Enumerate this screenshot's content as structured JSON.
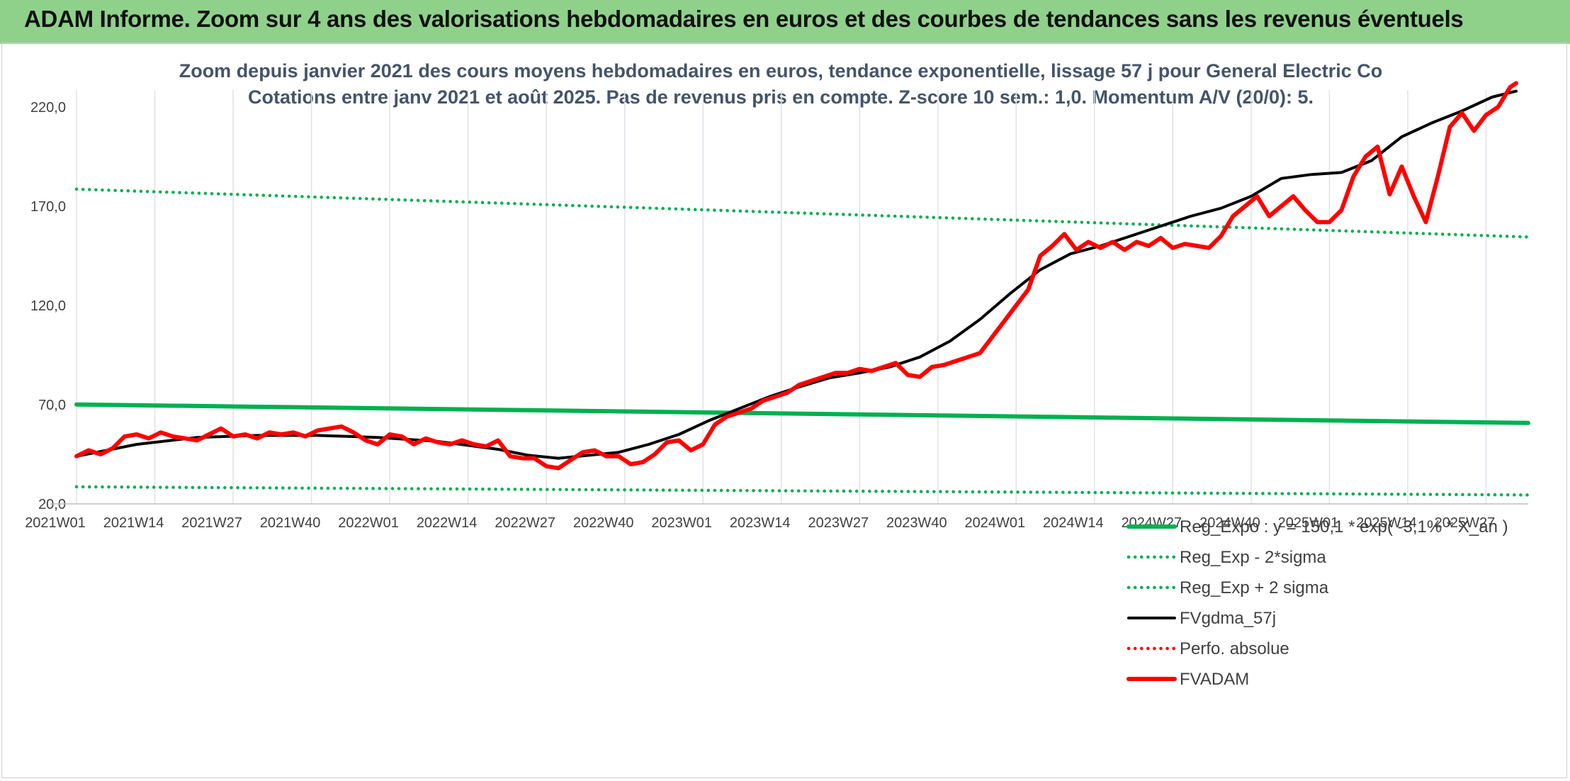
{
  "banner": {
    "title": "ADAM Informe. Zoom sur 4 ans des valorisations hebdomadaires en euros et des courbes de tendances sans les revenus éventuels"
  },
  "colors": {
    "green": "#00b050",
    "red": "#ff0000",
    "black": "#000000",
    "title_text": "#44546a",
    "banner_bg": "#8fd18b"
  },
  "chart_data": {
    "type": "line",
    "title": "Zoom depuis janvier 2021 des cours moyens hebdomadaires en euros, tendance exponentielle, lissage 57 j pour General Electric Co",
    "subtitle": "Cotations entre janv 2021 et août 2025. Pas de revenus pris en compte. Z-score 10 sem.: 1,0. Momentum A/V (20/0): 5.",
    "xlabel": "",
    "ylabel": "",
    "ylim": [
      20,
      220
    ],
    "y_ticks": [
      "20,0",
      "70,0",
      "120,0",
      "170,0",
      "220,0"
    ],
    "x_range": [
      0,
      241
    ],
    "x_ticks": [
      "2021W01",
      "2021W14",
      "2021W27",
      "2021W40",
      "2022W01",
      "2022W14",
      "2022W27",
      "2022W40",
      "2023W01",
      "2023W14",
      "2023W27",
      "2023W40",
      "2024W01",
      "2024W14",
      "2024W27",
      "2024W40",
      "2025W01",
      "2025W14",
      "2025W27"
    ],
    "grid": "vertical",
    "legend_position": "bottom-right",
    "series": [
      {
        "name": "Reg_Expo : y = 150,1 * exp( -3,1% *  X_an )",
        "style": "solid-thick",
        "color": "#00b050",
        "x": [
          0,
          241
        ],
        "y": [
          70.1,
          60.8
        ]
      },
      {
        "name": "Reg_Exp - 2*sigma",
        "style": "dotted",
        "color": "#00b050",
        "x": [
          0,
          241
        ],
        "y": [
          28.6,
          24.5
        ]
      },
      {
        "name": "Reg_Exp + 2 sigma",
        "style": "dotted",
        "color": "#00b050",
        "x": [
          0,
          241
        ],
        "y": [
          178.6,
          154.5
        ]
      },
      {
        "name": "FVgdma_57j",
        "style": "solid",
        "color": "#000000",
        "x": [
          0,
          10,
          20,
          30,
          40,
          50,
          60,
          70,
          75,
          80,
          90,
          95,
          100,
          105,
          110,
          115,
          120,
          125,
          130,
          135,
          140,
          145,
          150,
          155,
          160,
          165,
          170,
          175,
          180,
          185,
          190,
          195,
          200,
          205,
          210,
          215,
          220,
          225,
          230,
          235,
          239
        ],
        "y": [
          44,
          50,
          53.5,
          54.5,
          54.5,
          53.5,
          51.5,
          47.5,
          44.5,
          43,
          46,
          50,
          55,
          62,
          68,
          74,
          79,
          83.5,
          86,
          89,
          94,
          102,
          113,
          126,
          138,
          146,
          150,
          155,
          160,
          165,
          169,
          175,
          184,
          186,
          187,
          193,
          205,
          212,
          218,
          225,
          228
        ]
      },
      {
        "name": "Perfo. absolue",
        "style": "dotted",
        "color": "#ff0000",
        "x": [],
        "y": []
      },
      {
        "name": "FVADAM",
        "style": "solid-thick",
        "color": "#ff0000",
        "x": [
          0,
          2,
          4,
          6,
          8,
          10,
          12,
          14,
          16,
          18,
          20,
          22,
          24,
          26,
          28,
          30,
          32,
          34,
          36,
          38,
          40,
          42,
          44,
          46,
          48,
          50,
          52,
          54,
          56,
          58,
          60,
          62,
          64,
          66,
          68,
          70,
          72,
          74,
          76,
          78,
          80,
          82,
          84,
          86,
          88,
          90,
          92,
          94,
          96,
          98,
          100,
          102,
          104,
          106,
          108,
          110,
          112,
          114,
          116,
          118,
          120,
          122,
          124,
          126,
          128,
          130,
          132,
          134,
          136,
          138,
          140,
          142,
          144,
          146,
          148,
          150,
          152,
          154,
          156,
          158,
          160,
          162,
          164,
          166,
          168,
          170,
          172,
          174,
          176,
          178,
          180,
          182,
          184,
          186,
          188,
          190,
          192,
          194,
          196,
          198,
          200,
          202,
          204,
          206,
          208,
          210,
          212,
          214,
          216,
          218,
          220,
          222,
          224,
          226,
          228,
          230,
          232,
          234,
          236,
          238,
          239
        ],
        "y": [
          44,
          47,
          45,
          48,
          54,
          55,
          53,
          56,
          54,
          53,
          52,
          55,
          58,
          54,
          55,
          53,
          56,
          55,
          56,
          54,
          57,
          58,
          59,
          56,
          52,
          50,
          55,
          54,
          50,
          53,
          51,
          50,
          52,
          50,
          49,
          52,
          44,
          43,
          43,
          39,
          38,
          42,
          46,
          47,
          44,
          44,
          40,
          41,
          45,
          51,
          52,
          47,
          50,
          60,
          64,
          66,
          68,
          72,
          74,
          76,
          80,
          82,
          84,
          86,
          86,
          88,
          87,
          89,
          91,
          85,
          84,
          89,
          90,
          92,
          94,
          96,
          104,
          112,
          120,
          128,
          145,
          150,
          156,
          148,
          152,
          149,
          152,
          148,
          152,
          150,
          154,
          149,
          151,
          150,
          149,
          155,
          165,
          170,
          175,
          165,
          170,
          175,
          168,
          162,
          162,
          168,
          185,
          195,
          200,
          176,
          190,
          175,
          162,
          185,
          210,
          217,
          208,
          216,
          220,
          230,
          232
        ]
      }
    ]
  }
}
